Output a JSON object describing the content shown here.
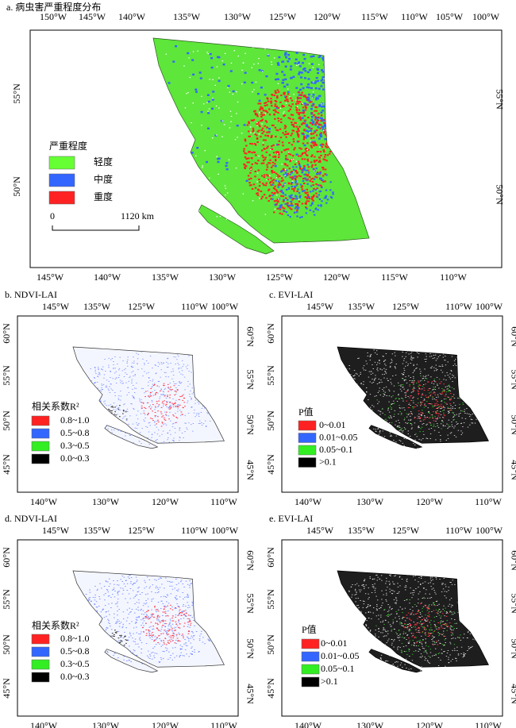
{
  "panels": [
    {
      "title": "a. 病虫害严重程度分布",
      "top_ticks": [
        "150°W",
        "145°W",
        "140°W",
        "135°W",
        "130°W",
        "125°W",
        "120°W",
        "115°W",
        "110°W",
        "105°W",
        "100°W"
      ],
      "bottom_ticks": [
        "145°W",
        "140°W",
        "135°W",
        "130°W",
        "125°W",
        "120°W",
        "115°W",
        "110°W"
      ],
      "left_ticks": [
        "55°N",
        "50°N"
      ],
      "right_ticks": [
        "55°N",
        "50°N"
      ],
      "legend": {
        "title": "严重程度",
        "items": [
          {
            "label": "轻度",
            "color": "#66ff33"
          },
          {
            "label": "中度",
            "color": "#3366ff"
          },
          {
            "label": "重度",
            "color": "#ff2222"
          }
        ]
      },
      "scale_start": 0,
      "scale_end": "1120 km"
    },
    {
      "title": "b. NDVI-LAI",
      "top_ticks": [
        "145°W",
        "135°W",
        "125°W",
        "110°W",
        "100°W"
      ],
      "bottom_ticks": [
        "140°W",
        "130°W",
        "120°W",
        "110°W"
      ],
      "left_ticks": [
        "60°N",
        "55°N",
        "50°N",
        "45°N"
      ],
      "right_ticks": [
        "60°N",
        "55°N",
        "50°N",
        "45°N"
      ],
      "legend": {
        "title": "相关系数R²",
        "items": [
          {
            "label": "0.8~1.0",
            "color": "#ff2222"
          },
          {
            "label": "0.5~0.8",
            "color": "#3366ff"
          },
          {
            "label": "0.3~0.5",
            "color": "#33ee22"
          },
          {
            "label": "0.0~0.3",
            "color": "#000000"
          }
        ]
      }
    },
    {
      "title": "c. EVI-LAI",
      "top_ticks": [
        "145°W",
        "135°W",
        "125°W",
        "110°W",
        "100°W"
      ],
      "bottom_ticks": [
        "140°W",
        "130°W",
        "120°W",
        "110°W"
      ],
      "left_ticks": [
        "60°N",
        "55°N",
        "50°N",
        "45°N"
      ],
      "right_ticks": [
        "60°N",
        "55°N",
        "50°N",
        "45°N"
      ],
      "legend": {
        "title": "P值",
        "items": [
          {
            "label": "0~0.01",
            "color": "#ff2222"
          },
          {
            "label": "0.01~0.05",
            "color": "#3366ff"
          },
          {
            "label": "0.05~0.1",
            "color": "#33ee22"
          },
          {
            "label": ">0.1",
            "color": "#000000"
          }
        ]
      }
    },
    {
      "title": "d. NDVI-LAI",
      "top_ticks": [
        "145°W",
        "135°W",
        "125°W",
        "110°W",
        "100°W"
      ],
      "bottom_ticks": [
        "140°W",
        "130°W",
        "120°W",
        "110°W"
      ],
      "left_ticks": [
        "60°N",
        "55°N",
        "50°N",
        "45°N"
      ],
      "right_ticks": [
        "60°N",
        "55°N",
        "50°N",
        "45°N"
      ],
      "legend": {
        "title": "相关系数R²",
        "items": [
          {
            "label": "0.8~1.0",
            "color": "#ff2222"
          },
          {
            "label": "0.5~0.8",
            "color": "#3366ff"
          },
          {
            "label": "0.3~0.5",
            "color": "#33ee22"
          },
          {
            "label": "0.0~0.3",
            "color": "#000000"
          }
        ]
      }
    },
    {
      "title": "e. EVI-LAI",
      "top_ticks": [
        "145°W",
        "135°W",
        "125°W",
        "110°W",
        "100°W"
      ],
      "bottom_ticks": [
        "140°W",
        "130°W",
        "120°W",
        "110°W"
      ],
      "left_ticks": [
        "60°N",
        "55°N",
        "50°N",
        "45°N"
      ],
      "right_ticks": [
        "60°N",
        "55°N",
        "50°N",
        "45°N"
      ],
      "legend": {
        "title": "P值",
        "items": [
          {
            "label": "0~0.01",
            "color": "#ff2222"
          },
          {
            "label": "0.01~0.05",
            "color": "#3366ff"
          },
          {
            "label": "0.05~0.1",
            "color": "#33ee22"
          },
          {
            "label": ">0.1",
            "color": "#000000"
          }
        ]
      }
    }
  ]
}
